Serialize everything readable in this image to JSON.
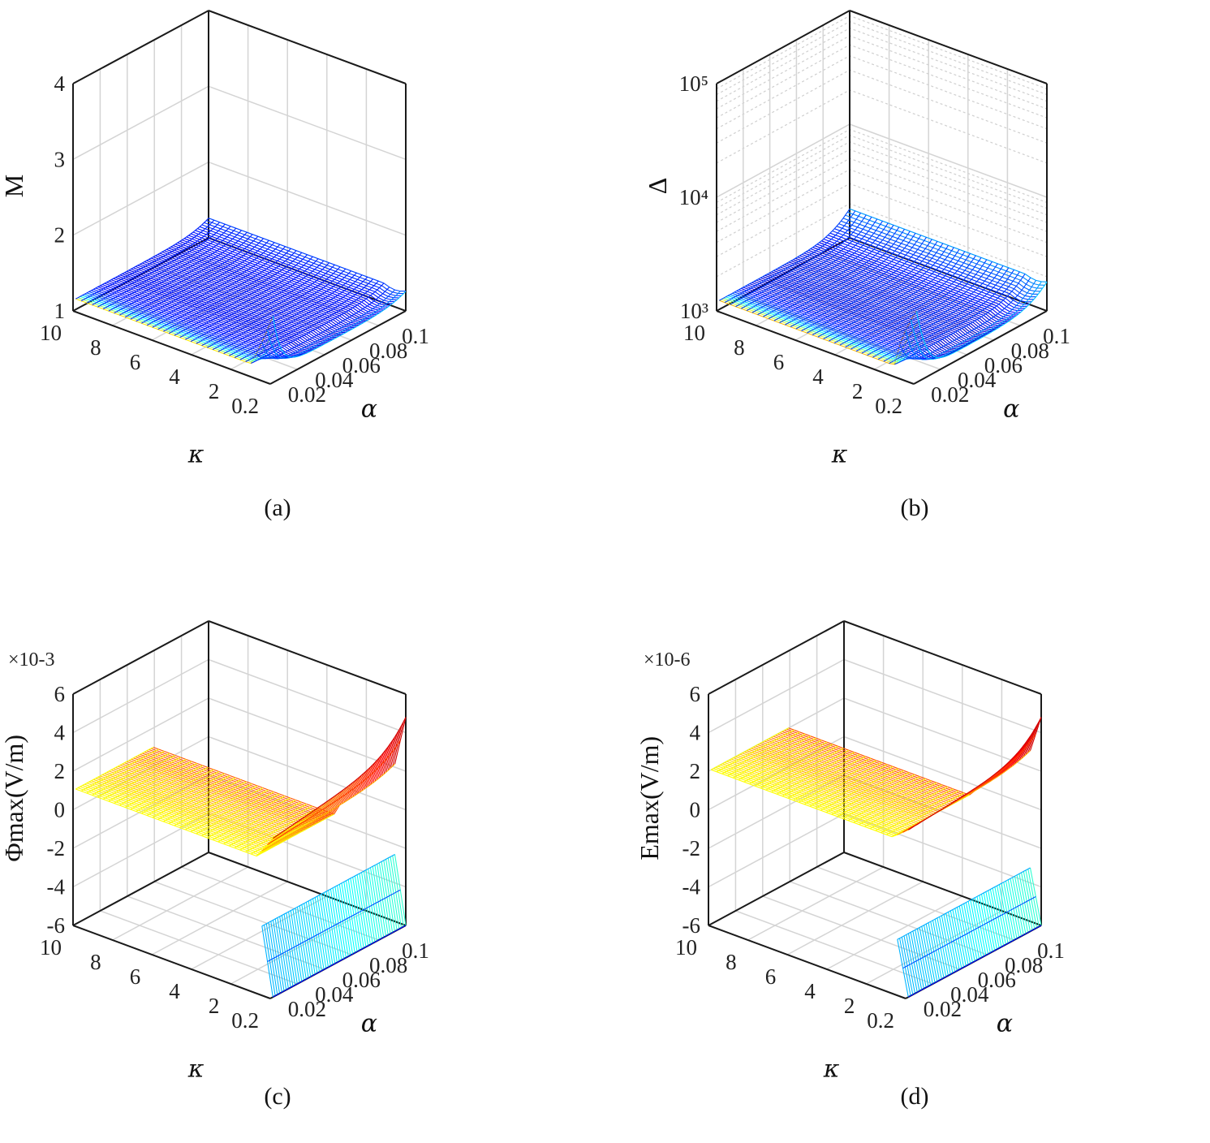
{
  "chart_data": [
    {
      "id": "a",
      "type": "surface",
      "caption": "(a)",
      "xlabel": "α",
      "ylabel": "κ",
      "zlabel": "M",
      "x_ticks": [
        "0.02",
        "0.04",
        "0.06",
        "0.08",
        "0.1"
      ],
      "y_ticks": [
        "0.2",
        "2",
        "4",
        "6",
        "8",
        "10"
      ],
      "z_ticks": [
        "1",
        "2",
        "3",
        "4"
      ],
      "xlim": [
        0,
        0.1
      ],
      "ylim": [
        0.2,
        10
      ],
      "zlim": [
        1,
        4
      ],
      "zscale": "linear",
      "multiplier": "",
      "surfaces": [
        {
          "base": 1.14,
          "peak": 2.2,
          "decay": 6,
          "floor": 1.08,
          "kdip": 1.0,
          "edge_rise": 0.12,
          "colormap": "jet-low"
        }
      ]
    },
    {
      "id": "b",
      "type": "surface",
      "caption": "(b)",
      "xlabel": "α",
      "ylabel": "κ",
      "zlabel": "Δ",
      "x_ticks": [
        "0.02",
        "0.04",
        "0.06",
        "0.08",
        "0.1"
      ],
      "y_ticks": [
        "0.2",
        "2",
        "4",
        "6",
        "8",
        "10"
      ],
      "z_ticks": [
        "10³",
        "10⁴",
        "10⁵"
      ],
      "xlim": [
        0,
        0.1
      ],
      "ylim": [
        0.2,
        10
      ],
      "zlim": [
        1000,
        100000
      ],
      "zscale": "log",
      "multiplier": "",
      "surfaces": [
        {
          "base": 1200,
          "peak": 5800,
          "decay": 7,
          "floor": 1050,
          "kdip": 1.0,
          "edge_rise": 0.5,
          "colormap": "jet-low"
        }
      ]
    },
    {
      "id": "c",
      "type": "surface",
      "caption": "(c)",
      "xlabel": "α",
      "ylabel": "κ",
      "zlabel": "Φmax(V/m)",
      "x_ticks": [
        "0.02",
        "0.04",
        "0.06",
        "0.08",
        "0.1"
      ],
      "y_ticks": [
        "0.2",
        "2",
        "4",
        "6",
        "8",
        "10"
      ],
      "z_ticks": [
        "-6",
        "-4",
        "-2",
        "0",
        "2",
        "4",
        "6"
      ],
      "xlim": [
        0,
        0.1
      ],
      "ylim": [
        0.2,
        10
      ],
      "zlim": [
        -6,
        6
      ],
      "zscale": "linear",
      "multiplier": "×10-3",
      "surfaces": [
        {
          "branch": "positive",
          "plateau": 1.0,
          "wall_top": 3.2,
          "wall_rise": 1.6,
          "kwall": 0.6
        },
        {
          "branch": "negative",
          "plateau": -1.0,
          "wall_top": -6.0,
          "kwall": 0.6
        }
      ]
    },
    {
      "id": "d",
      "type": "surface",
      "caption": "(d)",
      "xlabel": "α",
      "ylabel": "κ",
      "zlabel": "Emax(V/m)",
      "x_ticks": [
        "0.02",
        "0.04",
        "0.06",
        "0.08",
        "0.1"
      ],
      "y_ticks": [
        "0.2",
        "2",
        "4",
        "6",
        "8",
        "10"
      ],
      "z_ticks": [
        "-6",
        "-4",
        "-2",
        "0",
        "2",
        "4",
        "6"
      ],
      "xlim": [
        0,
        0.1
      ],
      "ylim": [
        0.2,
        10
      ],
      "zlim": [
        -6,
        6
      ],
      "zscale": "linear",
      "multiplier": "×10-6",
      "surfaces": [
        {
          "branch": "positive",
          "plateau": 2.0,
          "wall_top": 3.2,
          "wall_rise": 1.6,
          "kwall": 0.6
        },
        {
          "branch": "negative",
          "plateau": -2.0,
          "wall_top": -6.0,
          "kwall": 0.6
        }
      ]
    }
  ]
}
